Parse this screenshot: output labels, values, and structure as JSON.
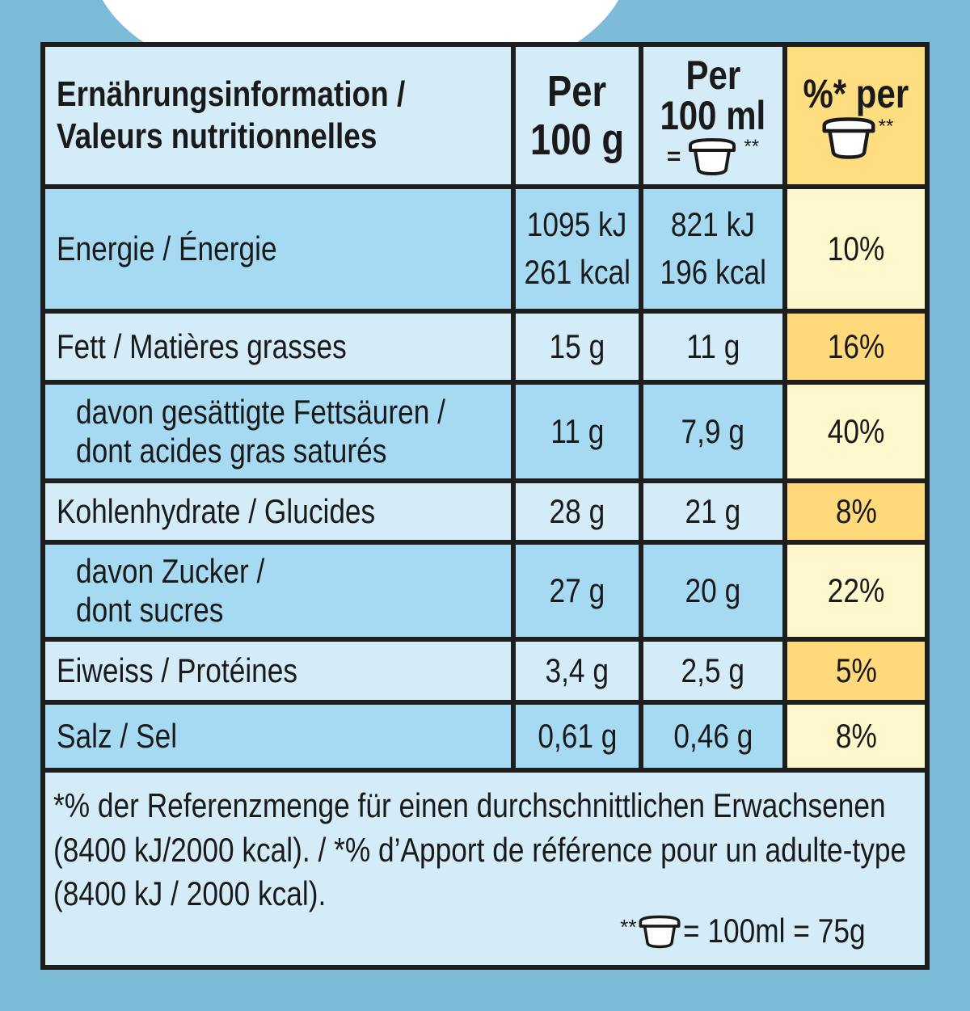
{
  "header": {
    "label_de": "Ernährungsinformation /",
    "label_fr": "Valeurs nutritionnelles",
    "col1_line1": "Per",
    "col1_line2": "100 g",
    "col2_line1": "Per",
    "col2_line2": "100 ml",
    "col2_eq": "=",
    "col2_stars": "**",
    "col3_line1": "%* per",
    "col3_stars": "**"
  },
  "rows": [
    {
      "label": "Energie / Énergie",
      "per100g_a": "1095 kJ",
      "per100g_b": "261 kcal",
      "per100ml_a": "821 kJ",
      "per100ml_b": "196 kcal",
      "percent": "10%"
    },
    {
      "label": "Fett / Matières grasses",
      "per100g": "15 g",
      "per100ml": "11 g",
      "percent": "16%"
    },
    {
      "label_a": "davon gesättigte Fettsäuren /",
      "label_b": "dont acides gras saturés",
      "per100g": "11 g",
      "per100ml": "7,9 g",
      "percent": "40%"
    },
    {
      "label": "Kohlenhydrate / Glucides",
      "per100g": "28 g",
      "per100ml": "21 g",
      "percent": "8%"
    },
    {
      "label_a": "davon Zucker /",
      "label_b": "dont sucres",
      "per100g": "27 g",
      "per100ml": "20 g",
      "percent": "22%"
    },
    {
      "label": "Eiweiss / Protéines",
      "per100g": "3,4 g",
      "per100ml": "2,5 g",
      "percent": "5%"
    },
    {
      "label": "Salz / Sel",
      "per100g": "0,61 g",
      "per100ml": "0,46 g",
      "percent": "8%"
    }
  ],
  "footnote": {
    "line1": "*% der Referenzmenge für einen durchschnittlichen Erwachsenen",
    "line2": "(8400 kJ/2000 kcal). / *% d’Apport de référence pour un adulte-type",
    "line3": "(8400 kJ / 2000 kcal).",
    "stars": "**",
    "portion": "= 100ml = 75g"
  },
  "icons": [
    "cup-icon"
  ],
  "colors": {
    "background": "#7cbcd9",
    "light_blue": "#d4ecf8",
    "mid_blue": "#a6daf3",
    "cream": "#fff8cc",
    "gold": "#ffd97a",
    "border": "#1e1e1e"
  }
}
